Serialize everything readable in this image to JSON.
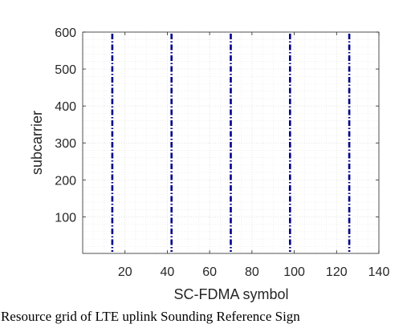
{
  "chart_data": {
    "type": "scatter",
    "title": "",
    "xlabel": "SC-FDMA symbol",
    "ylabel": "subcarrier",
    "xlim": [
      0,
      140
    ],
    "ylim": [
      1,
      600
    ],
    "xticks": [
      20,
      40,
      60,
      80,
      100,
      120,
      140
    ],
    "yticks": [
      100,
      200,
      300,
      400,
      500,
      600
    ],
    "grid": "on (major + minor dotted)",
    "series": [
      {
        "x_values": [
          14,
          42,
          70,
          98,
          126
        ],
        "y_range": [
          1,
          600
        ],
        "style": "dash-dot vertical marks",
        "color": "#00008b"
      }
    ]
  },
  "caption": ": Resource grid of LTE uplink Sounding Reference Sign"
}
